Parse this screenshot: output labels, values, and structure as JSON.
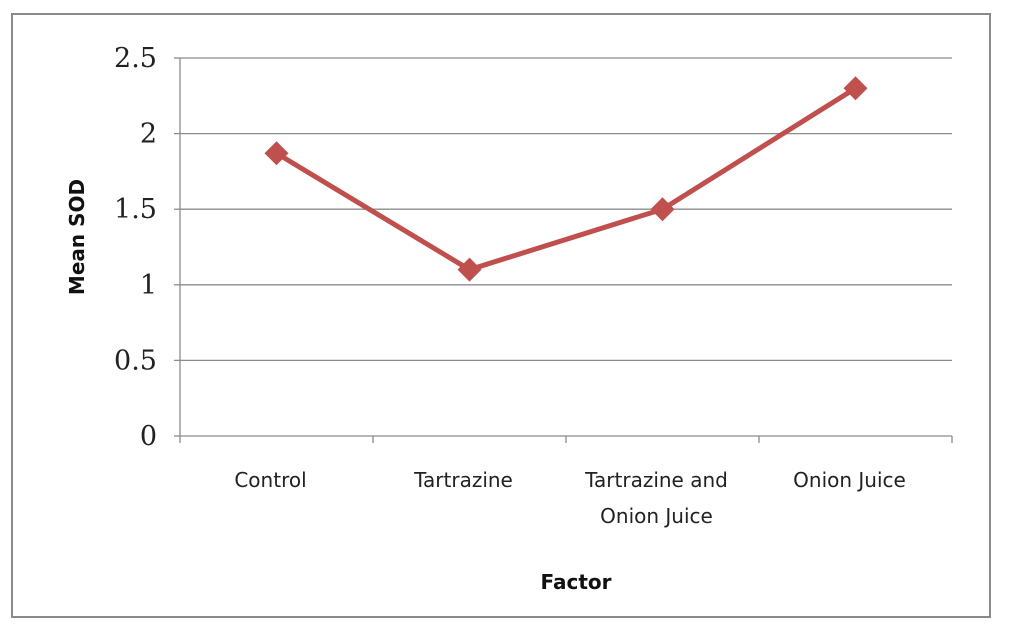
{
  "chart_data": {
    "type": "line",
    "title": "",
    "xlabel": "Factor",
    "ylabel": "Mean SOD",
    "categories": [
      "Control",
      "Tartrazine",
      "Tartrazine and Onion Juice",
      "Onion Juice"
    ],
    "category_lines": [
      [
        "Control"
      ],
      [
        "Tartrazine"
      ],
      [
        "Tartrazine and",
        "Onion Juice"
      ],
      [
        "Onion Juice"
      ]
    ],
    "yticks": [
      "0",
      "0.5",
      "1",
      "1.5",
      "2",
      "2.5"
    ],
    "ylim": [
      0,
      2.5
    ],
    "grid": true,
    "legend": "none",
    "series": [
      {
        "values": [
          1.87,
          1.1,
          1.5,
          2.3
        ],
        "color": "#c0504d",
        "marker": "diamond"
      }
    ]
  }
}
